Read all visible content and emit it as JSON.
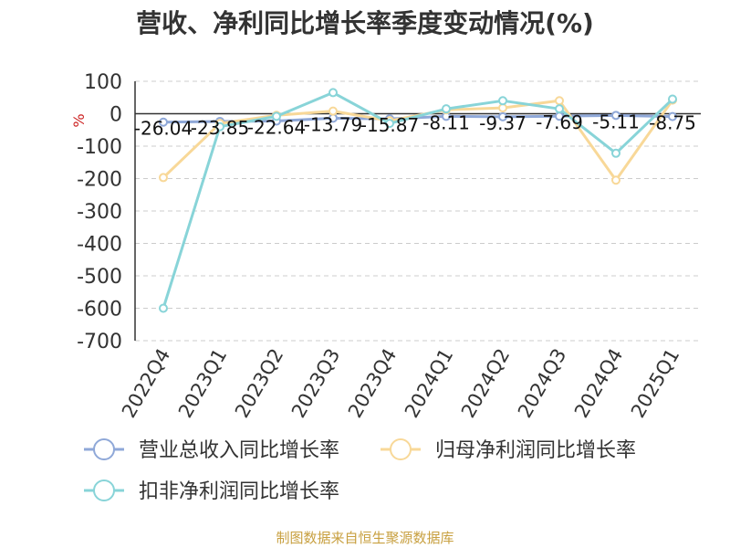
{
  "chart_data": {
    "type": "line",
    "title": "营收、净利同比增长率季度变动情况(%)",
    "ylabel": "%",
    "xlabel": "",
    "categories": [
      "2022Q4",
      "2023Q1",
      "2023Q2",
      "2023Q3",
      "2023Q4",
      "2024Q1",
      "2024Q2",
      "2024Q3",
      "2024Q4",
      "2025Q1"
    ],
    "ylim": [
      -700,
      100
    ],
    "yticks": [
      100,
      0,
      -100,
      -200,
      -300,
      -400,
      -500,
      -600,
      -700
    ],
    "grid": true,
    "legend_position": "bottom",
    "series": [
      {
        "name": "营业总收入同比增长率",
        "color": "#8fa8d8",
        "values": [
          -26.04,
          -23.85,
          -22.64,
          -13.79,
          -15.87,
          -8.11,
          -9.37,
          -7.69,
          -5.11,
          -8.75
        ],
        "labels": [
          "-26.04",
          "-23.85",
          "-22.64",
          "-13.79",
          "-15.87",
          "-8.11",
          "-9.37",
          "-7.69",
          "-5.11",
          "-8.75"
        ]
      },
      {
        "name": "归母净利润同比增长率",
        "color": "#f8d898",
        "values": [
          -197,
          -30,
          -5,
          8,
          -22,
          12,
          18,
          40,
          -205,
          42
        ],
        "labels": []
      },
      {
        "name": "扣非净利润同比增长率",
        "color": "#88d4d8",
        "values": [
          -600,
          -40,
          -8,
          65,
          -30,
          15,
          40,
          15,
          -122,
          45
        ],
        "labels": []
      }
    ]
  },
  "source_note": "制图数据来自恒生聚源数据库"
}
